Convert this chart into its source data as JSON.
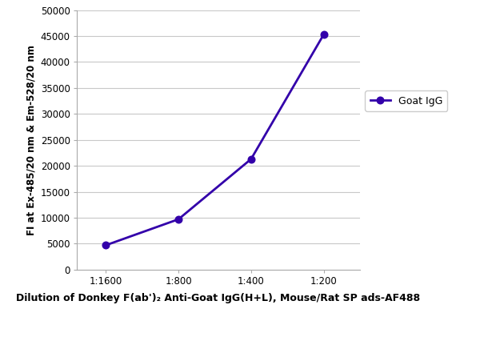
{
  "x_labels": [
    "1:1600",
    "1:800",
    "1:400",
    "1:200"
  ],
  "x_values": [
    1,
    2,
    3,
    4
  ],
  "y_values": [
    4700,
    9700,
    21300,
    45300
  ],
  "line_color": "#3300aa",
  "marker": "o",
  "marker_size": 6,
  "marker_facecolor": "#3300aa",
  "legend_label": "Goat IgG",
  "ylabel": "FI at Ex-485/20 nm & Em-528/20 nm",
  "xlabel": "Dilution of Donkey F(ab')₂ Anti-Goat IgG(H+L), Mouse/Rat SP ads-AF488",
  "ylim": [
    0,
    50000
  ],
  "yticks": [
    0,
    5000,
    10000,
    15000,
    20000,
    25000,
    30000,
    35000,
    40000,
    45000,
    50000
  ],
  "ylabel_fontsize": 8.5,
  "xlabel_fontsize": 9,
  "tick_fontsize": 8.5,
  "legend_fontsize": 9,
  "background_color": "#ffffff",
  "plot_bg_color": "#ffffff",
  "grid_color": "#c8c8c8",
  "line_width": 2.0
}
